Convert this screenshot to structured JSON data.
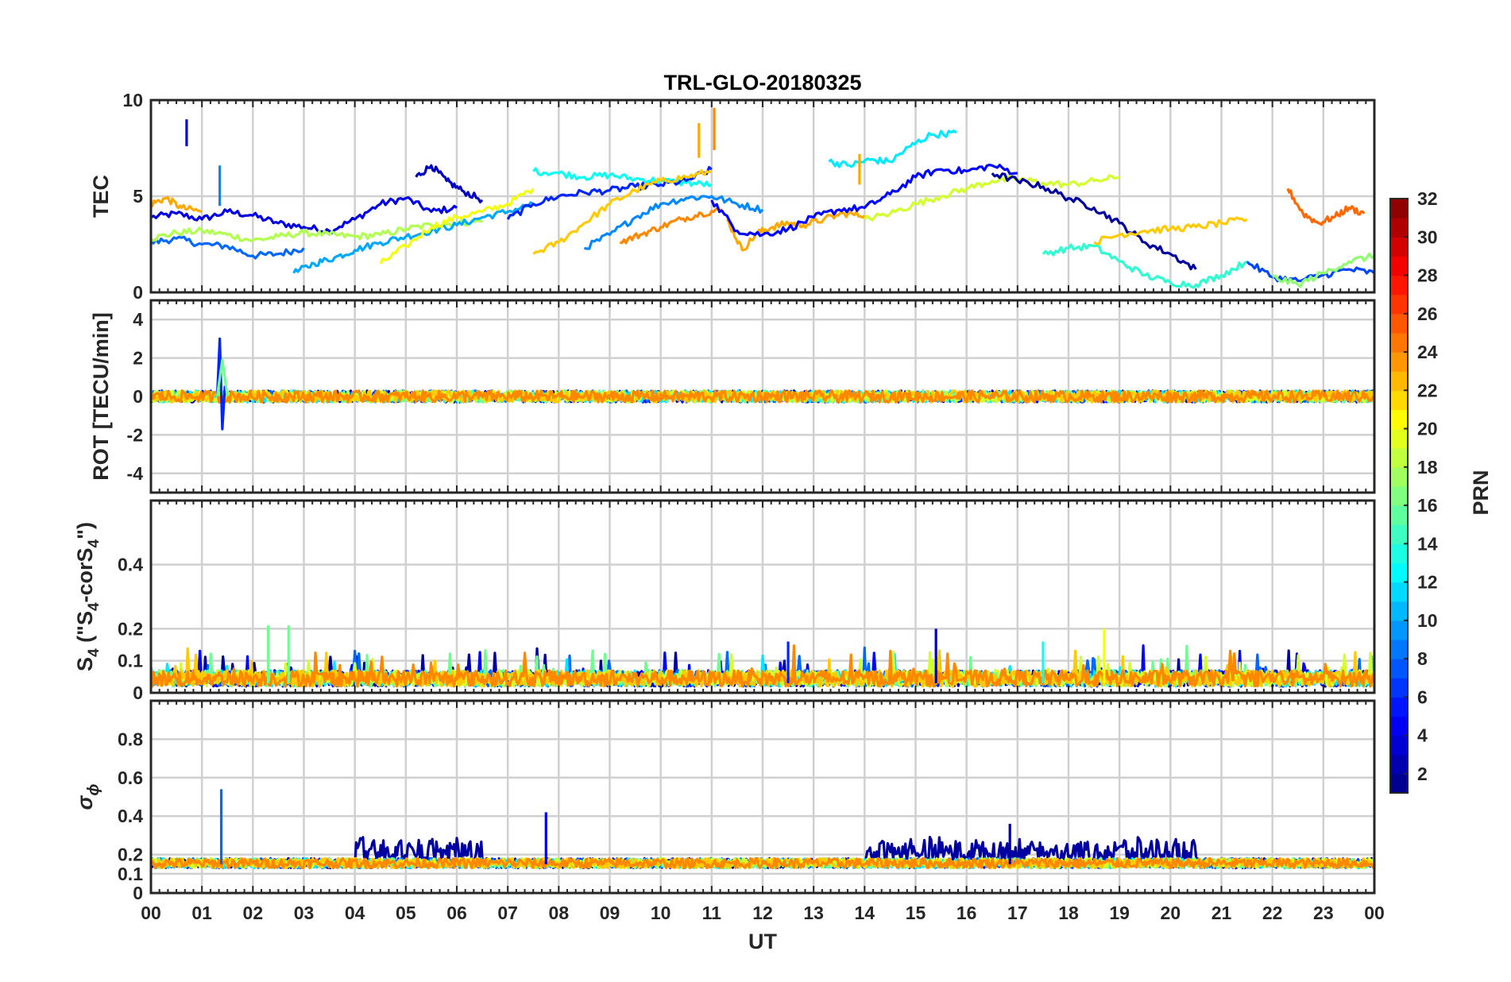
{
  "figure": {
    "title": "TRL-GLO-20180325",
    "xlabel": "UT"
  },
  "chart_data": [
    {
      "type": "line",
      "panel": "TEC",
      "ylabel": "TEC",
      "ylim": [
        0,
        10
      ],
      "yticks": [
        0,
        5,
        10
      ],
      "grid": true,
      "series": [
        {
          "name": "PRN 4",
          "prn": 4,
          "x": [
            0.0,
            0.5,
            1.0,
            1.5,
            2.0,
            2.5,
            3.0,
            3.5,
            4.0,
            4.5,
            5.0,
            5.5,
            6.0
          ],
          "y": [
            3.9,
            4.1,
            3.8,
            4.2,
            4.0,
            3.6,
            3.4,
            3.2,
            3.8,
            4.6,
            4.9,
            4.2,
            4.4
          ]
        },
        {
          "name": "PRN 8",
          "prn": 8,
          "x": [
            0.0,
            0.5,
            1.0,
            1.5,
            2.0,
            2.5,
            3.0
          ],
          "y": [
            2.6,
            2.8,
            2.5,
            2.4,
            1.9,
            2.0,
            2.3
          ]
        },
        {
          "name": "PRN 18",
          "prn": 18,
          "x": [
            0.0,
            0.5,
            1.0,
            1.5,
            2.0,
            2.5,
            3.0,
            3.5,
            4.0,
            4.5,
            5.0,
            5.5,
            6.0,
            6.5
          ],
          "y": [
            2.8,
            3.1,
            3.2,
            3.0,
            2.7,
            2.9,
            3.1,
            3.0,
            2.9,
            3.0,
            3.3,
            3.5,
            3.6,
            3.7
          ]
        },
        {
          "name": "PRN 23",
          "prn": 23,
          "x": [
            0.0,
            0.3,
            0.6,
            1.0
          ],
          "y": [
            4.6,
            4.9,
            4.4,
            4.2
          ]
        },
        {
          "name": "PRN 3",
          "prn": 3,
          "x": [
            5.2,
            5.5,
            5.8,
            6.1,
            6.5
          ],
          "y": [
            6.0,
            6.6,
            5.8,
            5.3,
            4.8
          ]
        },
        {
          "name": "PRN 10",
          "prn": 10,
          "x": [
            2.8,
            3.2,
            3.6,
            4.0,
            4.5,
            5.0,
            5.5,
            6.0,
            6.5,
            7.0,
            7.5
          ],
          "y": [
            1.0,
            1.5,
            1.8,
            2.2,
            2.6,
            2.9,
            3.2,
            3.5,
            3.9,
            4.2,
            4.6
          ]
        },
        {
          "name": "PRN 20",
          "prn": 20,
          "x": [
            4.5,
            5.0,
            5.5,
            6.0,
            6.5,
            7.0,
            7.5
          ],
          "y": [
            1.5,
            2.4,
            3.4,
            3.9,
            4.2,
            4.6,
            5.4
          ]
        },
        {
          "name": "PRN 13",
          "prn": 13,
          "x": [
            7.5,
            8.0,
            8.5,
            9.0,
            9.5,
            10.0,
            10.5,
            11.0
          ],
          "y": [
            6.3,
            6.2,
            6.0,
            6.1,
            5.9,
            5.8,
            5.7,
            5.6
          ]
        },
        {
          "name": "PRN 6",
          "prn": 6,
          "x": [
            7.0,
            7.5,
            8.0,
            8.5,
            9.0,
            9.5,
            10.0,
            10.5,
            11.0
          ],
          "y": [
            3.8,
            4.6,
            5.0,
            5.2,
            5.3,
            5.5,
            5.6,
            5.8,
            6.4
          ]
        },
        {
          "name": "PRN 22",
          "prn": 22,
          "x": [
            7.5,
            8.0,
            8.5,
            9.0,
            9.5,
            10.0,
            10.5,
            11.0
          ],
          "y": [
            2.0,
            2.6,
            3.6,
            4.6,
            5.3,
            5.8,
            6.0,
            6.3
          ]
        },
        {
          "name": "PRN 9",
          "prn": 9,
          "x": [
            8.5,
            9.0,
            9.5,
            10.0,
            10.5,
            11.0,
            11.5,
            12.0
          ],
          "y": [
            2.3,
            3.0,
            3.9,
            4.6,
            4.9,
            5.0,
            4.6,
            4.3
          ]
        },
        {
          "name": "PRN 24",
          "prn": 24,
          "x": [
            9.2,
            9.6,
            10.0,
            10.4,
            10.8,
            11.2
          ],
          "y": [
            2.6,
            3.0,
            3.4,
            3.8,
            4.1,
            4.3
          ]
        },
        {
          "name": "PRN 23b",
          "prn": 23,
          "x": [
            11.3,
            11.6,
            11.9,
            12.2,
            12.5,
            12.8,
            13.2,
            13.6,
            14.0
          ],
          "y": [
            3.8,
            2.2,
            3.1,
            3.4,
            3.6,
            3.5,
            3.8,
            4.1,
            4.0
          ]
        },
        {
          "name": "PRN 5",
          "prn": 5,
          "x": [
            11.0,
            11.5,
            12.0,
            12.5,
            13.0,
            13.5,
            14.0,
            14.5,
            15.0,
            15.5,
            16.0,
            16.5,
            17.0
          ],
          "y": [
            4.8,
            3.2,
            3.0,
            3.3,
            3.9,
            4.3,
            4.4,
            5.1,
            6.0,
            6.4,
            6.3,
            6.6,
            6.2
          ]
        },
        {
          "name": "PRN 12",
          "prn": 12,
          "x": [
            13.3,
            13.7,
            14.1,
            14.5,
            14.9,
            15.3,
            15.8
          ],
          "y": [
            6.8,
            6.6,
            6.9,
            6.8,
            7.6,
            8.2,
            8.3
          ]
        },
        {
          "name": "PRN 19",
          "prn": 19,
          "x": [
            14.0,
            14.5,
            15.0,
            15.5,
            16.0,
            16.5,
            17.0,
            17.5,
            18.0,
            18.5,
            19.0
          ],
          "y": [
            3.8,
            4.1,
            4.6,
            5.0,
            5.4,
            5.8,
            5.9,
            5.7,
            5.6,
            5.8,
            6.0
          ]
        },
        {
          "name": "PRN 2",
          "prn": 2,
          "x": [
            16.5,
            17.0,
            17.5,
            18.0,
            18.5,
            19.0,
            19.5,
            20.0,
            20.5
          ],
          "y": [
            6.2,
            5.8,
            5.5,
            4.9,
            4.4,
            3.6,
            2.6,
            2.0,
            1.2
          ]
        },
        {
          "name": "PRN 14",
          "prn": 14,
          "x": [
            17.5,
            18.0,
            18.5,
            19.0,
            19.5,
            20.0,
            20.5,
            21.0,
            21.5
          ],
          "y": [
            2.0,
            2.3,
            2.4,
            1.6,
            0.9,
            0.5,
            0.4,
            0.9,
            1.6
          ]
        },
        {
          "name": "PRN 22b",
          "prn": 22,
          "x": [
            18.5,
            19.0,
            19.5,
            20.0,
            20.5,
            21.0,
            21.5
          ],
          "y": [
            2.6,
            3.0,
            3.2,
            3.3,
            3.4,
            3.6,
            3.8
          ]
        },
        {
          "name": "PRN 25",
          "prn": 25,
          "x": [
            22.3,
            22.6,
            22.9,
            23.2,
            23.5,
            23.8
          ],
          "y": [
            5.4,
            4.1,
            3.6,
            3.9,
            4.4,
            4.1
          ]
        },
        {
          "name": "PRN 7",
          "prn": 7,
          "x": [
            21.5,
            22.0,
            22.5,
            23.0,
            23.5,
            24.0
          ],
          "y": [
            1.6,
            0.8,
            0.6,
            0.9,
            1.2,
            1.0
          ]
        },
        {
          "name": "PRN 17",
          "prn": 17,
          "x": [
            22.0,
            22.5,
            23.0,
            23.5,
            24.0
          ],
          "y": [
            0.8,
            0.4,
            1.0,
            1.6,
            1.9
          ]
        }
      ]
    },
    {
      "type": "line",
      "panel": "ROT",
      "ylabel": "ROT [TECU/min]",
      "ylim": [
        -5,
        5
      ],
      "yticks": [
        -4,
        -2,
        0,
        2,
        4
      ],
      "grid": true,
      "annotation": "all PRN traces stay near 0 TECU/min; largest spike about +3 / -1.7 near 01:24 UT",
      "series": [
        {
          "name": "PRN 6 spike",
          "prn": 6,
          "x": [
            1.3,
            1.35,
            1.4,
            1.45,
            1.5
          ],
          "y": [
            0.0,
            3.0,
            -1.7,
            0.5,
            0.0
          ]
        },
        {
          "name": "PRN 16 spike",
          "prn": 16,
          "x": [
            1.3,
            1.4,
            1.5
          ],
          "y": [
            0.0,
            1.9,
            0.0
          ]
        }
      ]
    },
    {
      "type": "line",
      "panel": "S4",
      "ylabel": "S4 (\"S4-corS4\")",
      "ylim": [
        0,
        0.6
      ],
      "yticks": [
        0,
        0.1,
        0.2,
        0.4
      ],
      "grid": true,
      "annotation": "noise-level values 0–0.1 for all PRNs; occasional peaks up to about 0.2 (e.g. near 02:20 and 15:25 UT)"
    },
    {
      "type": "line",
      "panel": "sigma_phi",
      "ylabel": "σ ϕ",
      "ylim": [
        0,
        1
      ],
      "yticks": [
        0,
        0.1,
        0.2,
        0.4,
        0.6,
        0.8
      ],
      "grid": true,
      "annotation": "baseline about 0.15–0.2; spike to about 0.54 near 01:22 UT (PRN 8), about 0.42 near 07:45 UT; PRN 2 elevated 0.2–0.35 around 04–06 UT and 14–20 UT"
    }
  ],
  "xaxis": {
    "xlim": [
      0,
      24
    ],
    "ticklabels": [
      "00",
      "01",
      "02",
      "03",
      "04",
      "05",
      "06",
      "07",
      "08",
      "09",
      "10",
      "11",
      "12",
      "13",
      "14",
      "15",
      "16",
      "17",
      "18",
      "19",
      "20",
      "21",
      "22",
      "23",
      "00"
    ]
  },
  "colorbar": {
    "label": "PRN",
    "range": [
      1,
      32
    ],
    "ticks": [
      2,
      4,
      6,
      8,
      10,
      12,
      14,
      16,
      18,
      20,
      22,
      24,
      26,
      28,
      30,
      32
    ],
    "colormap": "jet"
  }
}
